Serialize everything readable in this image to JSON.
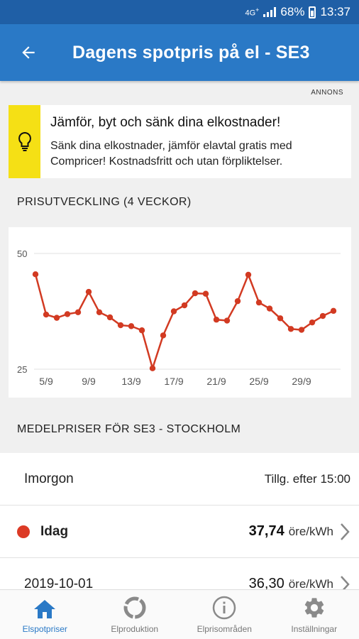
{
  "status": {
    "network": "4G",
    "network_sub": "+",
    "battery": "68%",
    "time": "13:37"
  },
  "appbar": {
    "title": "Dagens spotpris på el - SE3"
  },
  "ad": {
    "label": "ANNONS",
    "title": "Jämför, byt och sänk dina elkostnader!",
    "body_line1": "Sänk dina elkostnader, jämför elavtal gratis med",
    "body_line2": "Compricer! Kostnadsfritt och utan förpliktelser.",
    "accent_color": "#f5e015"
  },
  "sections": {
    "chart_title": "PRISUTVECKLING (4 VECKOR)",
    "prices_title": "MEDELPRISER FÖR SE3 - STOCKHOLM"
  },
  "chart_data": {
    "type": "line",
    "color": "#d23a22",
    "y_ticks": [
      "50",
      "25"
    ],
    "ylim": [
      25,
      50
    ],
    "x_ticks": [
      "5/9",
      "9/9",
      "13/9",
      "17/9",
      "21/9",
      "25/9",
      "29/9"
    ],
    "x_tick_days": [
      5,
      9,
      13,
      17,
      21,
      25,
      29
    ],
    "x": [
      4,
      5,
      6,
      7,
      8,
      9,
      10,
      11,
      12,
      13,
      14,
      15,
      16,
      17,
      18,
      19,
      20,
      21,
      22,
      23,
      24,
      25,
      26,
      27,
      28,
      29,
      30,
      31,
      32
    ],
    "values": [
      45.5,
      36.8,
      36.1,
      36.9,
      37.3,
      41.7,
      37.3,
      36.2,
      34.5,
      34.3,
      33.4,
      25.2,
      32.3,
      37.5,
      38.8,
      41.4,
      41.3,
      35.7,
      35.5,
      39.7,
      45.4,
      39.4,
      38.1,
      36.0,
      33.7,
      33.5,
      35.1,
      36.5,
      37.6
    ]
  },
  "prices": {
    "tomorrow": {
      "label": "Imorgon",
      "info": "Tillg. efter 15:00"
    },
    "today": {
      "label": "Idag",
      "value": "37,74",
      "unit": "öre/kWh",
      "dot_color": "#dc3a25"
    },
    "previous": {
      "label": "2019-10-01",
      "value": "36,30",
      "unit": "öre/kWh"
    }
  },
  "nav": [
    {
      "label": "Elspotpriser",
      "icon": "home-icon"
    },
    {
      "label": "Elproduktion",
      "icon": "ring-icon"
    },
    {
      "label": "Elprisområden",
      "icon": "info-icon"
    },
    {
      "label": "Inställningar",
      "icon": "gear-icon"
    }
  ]
}
